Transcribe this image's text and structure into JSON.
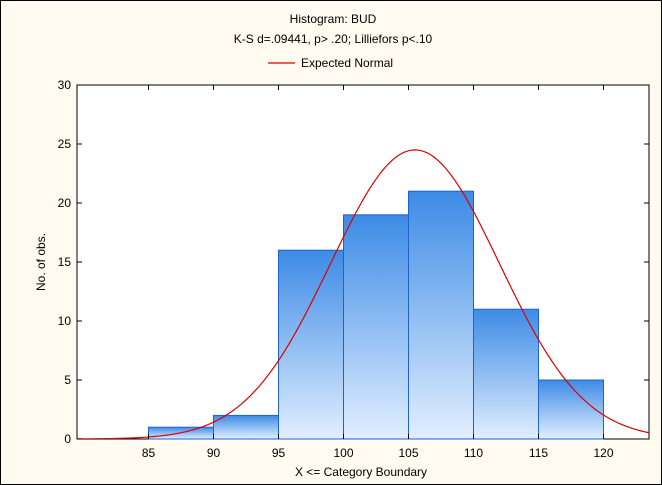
{
  "chart_data": {
    "type": "bar",
    "title": "Histogram: BUD",
    "subtitle": "K-S d=.09441, p> .20; Lilliefors p<.10",
    "legend": [
      {
        "name": "Expected Normal",
        "color": "#dd0000",
        "position": "top-center"
      }
    ],
    "xlabel": "X <= Category Boundary",
    "ylabel": "No. of obs.",
    "bins": [
      {
        "lower": 80,
        "upper": 85,
        "count": 0
      },
      {
        "lower": 85,
        "upper": 90,
        "count": 1
      },
      {
        "lower": 90,
        "upper": 95,
        "count": 2
      },
      {
        "lower": 95,
        "upper": 100,
        "count": 16
      },
      {
        "lower": 100,
        "upper": 105,
        "count": 19
      },
      {
        "lower": 105,
        "upper": 110,
        "count": 21
      },
      {
        "lower": 110,
        "upper": 115,
        "count": 11
      },
      {
        "lower": 115,
        "upper": 120,
        "count": 5
      }
    ],
    "xticks": [
      85,
      90,
      95,
      100,
      105,
      110,
      115,
      120
    ],
    "yticks": [
      0,
      5,
      10,
      15,
      20,
      25,
      30
    ],
    "xlim": [
      79.5,
      123.5
    ],
    "ylim": [
      0,
      30
    ],
    "expected_normal": {
      "mean": 105.5,
      "sd": 6.5,
      "peak": 24.5
    },
    "grid": false,
    "colors": {
      "bar_top": "#3d8be6",
      "bar_bottom": "#e2efff",
      "bar_edge": "#1e64c8",
      "curve": "#dd0000",
      "panel": "#ffffff",
      "background": "#fffbf0"
    }
  }
}
